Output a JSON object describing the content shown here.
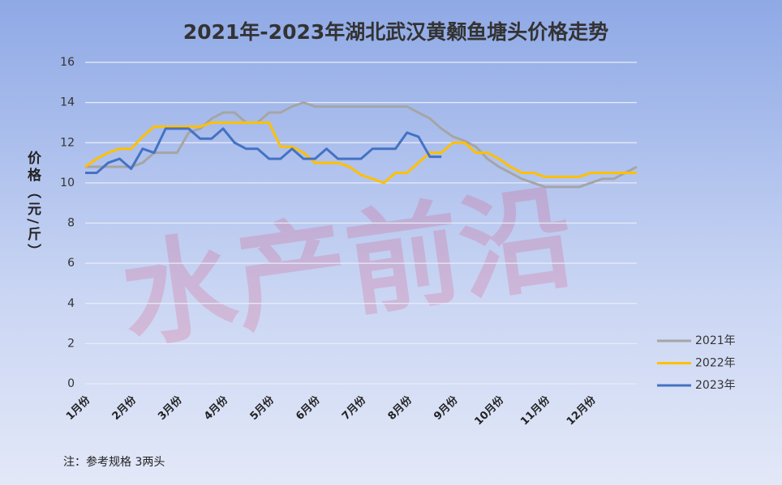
{
  "chart_data": {
    "type": "line",
    "title": "2021年-2023年湖北武汉黄颡鱼塘头价格走势",
    "y_label": "价格（元/斤）",
    "note": "注：参考规格  3两头",
    "watermark": "水产前沿",
    "categories": [
      "1月份",
      null,
      null,
      null,
      "2月份",
      null,
      null,
      null,
      "3月份",
      null,
      null,
      null,
      "4月份",
      null,
      null,
      null,
      "5月份",
      null,
      null,
      null,
      "6月份",
      null,
      null,
      null,
      "7月份",
      null,
      null,
      null,
      "8月份",
      null,
      null,
      null,
      "9月份",
      null,
      null,
      null,
      "10月份",
      null,
      null,
      null,
      "11月份",
      null,
      null,
      null,
      "12月份",
      null,
      null,
      null,
      null
    ],
    "ylim": [
      0,
      16
    ],
    "yticks": [
      0,
      2,
      4,
      6,
      8,
      10,
      12,
      14,
      16
    ],
    "grid": true,
    "legend": "right",
    "series": [
      {
        "name": "2021年",
        "color": "#a5a5a5",
        "values": [
          10.8,
          10.8,
          10.8,
          10.8,
          10.8,
          11,
          11.5,
          11.5,
          11.5,
          12.5,
          12.7,
          13.2,
          13.5,
          13.5,
          13,
          13,
          13.5,
          13.5,
          13.8,
          14,
          13.8,
          13.8,
          13.8,
          13.8,
          13.8,
          13.8,
          13.8,
          13.8,
          13.8,
          13.5,
          13.2,
          12.7,
          12.3,
          12.1,
          11.8,
          11.2,
          10.8,
          10.5,
          10.2,
          10,
          9.8,
          9.8,
          9.8,
          9.8,
          10,
          10.2,
          10.2,
          10.5,
          10.8
        ]
      },
      {
        "name": "2022年",
        "color": "#ffc000",
        "values": [
          10.8,
          11.2,
          11.5,
          11.7,
          11.7,
          12.3,
          12.8,
          12.8,
          12.8,
          12.8,
          12.8,
          13,
          13,
          13,
          13,
          13,
          13,
          11.8,
          11.8,
          11.5,
          11,
          11,
          11,
          10.8,
          10.4,
          10.2,
          10,
          10.5,
          10.5,
          11,
          11.5,
          11.5,
          12,
          12,
          11.5,
          11.5,
          11.2,
          10.8,
          10.5,
          10.5,
          10.3,
          10.3,
          10.3,
          10.3,
          10.5,
          10.5,
          10.5,
          10.5,
          10.5
        ]
      },
      {
        "name": "2023年",
        "color": "#4472c4",
        "values": [
          10.5,
          10.5,
          11,
          11.2,
          10.7,
          11.7,
          11.5,
          12.7,
          12.7,
          12.7,
          12.2,
          12.2,
          12.7,
          12,
          11.7,
          11.7,
          11.2,
          11.2,
          11.7,
          11.2,
          11.2,
          11.7,
          11.2,
          11.2,
          11.2,
          11.7,
          11.7,
          11.7,
          12.5,
          12.3,
          11.3,
          11.3,
          null,
          null,
          null,
          null,
          null,
          null,
          null,
          null,
          null,
          null,
          null,
          null,
          null,
          null,
          null,
          null,
          null
        ]
      }
    ]
  }
}
